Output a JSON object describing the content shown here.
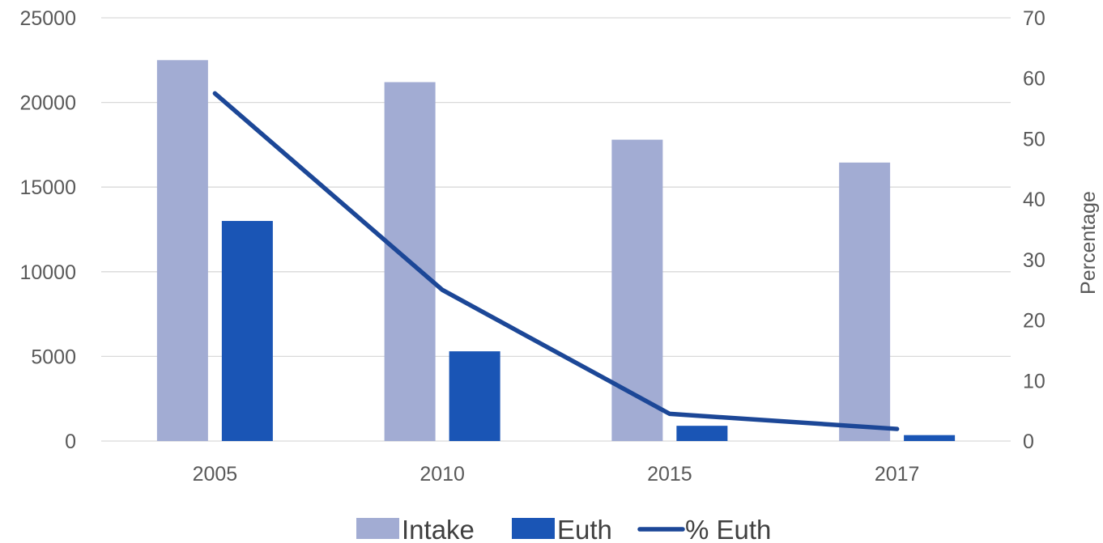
{
  "chart_data": {
    "type": "bar",
    "categories": [
      "2005",
      "2010",
      "2015",
      "2017"
    ],
    "series": [
      {
        "name": "Intake",
        "type": "bar",
        "axis": "left",
        "color": "#a2acd3",
        "values": [
          22500,
          21200,
          17800,
          16450
        ]
      },
      {
        "name": "Euth",
        "type": "bar",
        "axis": "left",
        "color": "#1a55b5",
        "values": [
          13000,
          5300,
          900,
          350
        ]
      },
      {
        "name": "% Euth",
        "type": "line",
        "axis": "right",
        "color": "#1c4797",
        "values": [
          57.5,
          25,
          4.5,
          2
        ]
      }
    ],
    "title": "",
    "xlabel": "",
    "ylabel": "",
    "y2label": "Percentage",
    "ylim": [
      0,
      25000
    ],
    "y2lim": [
      0,
      70
    ],
    "yticks": [
      "0",
      "5000",
      "10000",
      "15000",
      "20000",
      "25000"
    ],
    "y2ticks": [
      "0",
      "10",
      "20",
      "30",
      "40",
      "50",
      "60",
      "70"
    ],
    "grid": true,
    "legend": "bottom",
    "gridline_color": "#d9d9d9"
  }
}
